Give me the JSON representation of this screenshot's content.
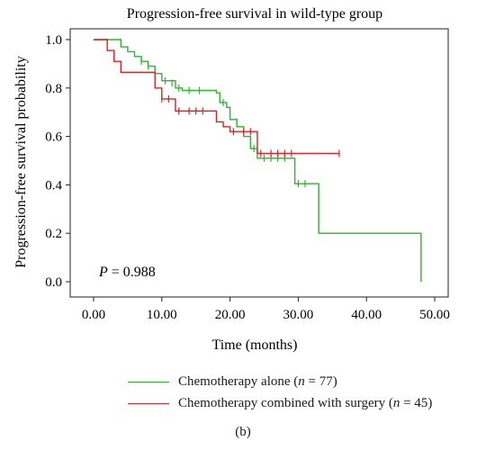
{
  "chart_data": {
    "type": "line",
    "step": true,
    "title": "Progression-free survival in wild-type group",
    "xlabel": "Time (months)",
    "ylabel": "Progression-free survival probability",
    "xlim": [
      0,
      50
    ],
    "ylim": [
      0,
      1.0
    ],
    "x_ticks": [
      "0.00",
      "10.00",
      "20.00",
      "30.00",
      "40.00",
      "50.00"
    ],
    "y_ticks": [
      "0.0",
      "0.2",
      "0.4",
      "0.6",
      "0.8",
      "1.0"
    ],
    "annotation": {
      "p_label": "P",
      "p_value": "= 0.988"
    },
    "grid": false,
    "legend_position": "bottom",
    "series": [
      {
        "name": "Chemotherapy alone",
        "n_label": "n",
        "n_value": "= 77",
        "color": "#2db52d",
        "steps": [
          [
            0,
            1.0
          ],
          [
            3,
            1.0
          ],
          [
            4,
            0.97
          ],
          [
            5,
            0.95
          ],
          [
            6,
            0.93
          ],
          [
            7,
            0.91
          ],
          [
            8,
            0.89
          ],
          [
            9,
            0.86
          ],
          [
            10,
            0.83
          ],
          [
            12,
            0.8
          ],
          [
            13,
            0.79
          ],
          [
            18,
            0.78
          ],
          [
            18.5,
            0.74
          ],
          [
            19.5,
            0.72
          ],
          [
            20,
            0.67
          ],
          [
            21,
            0.64
          ],
          [
            22,
            0.6
          ],
          [
            23,
            0.55
          ],
          [
            24,
            0.51
          ],
          [
            29,
            0.51
          ],
          [
            29.5,
            0.405
          ],
          [
            33,
            0.405
          ],
          [
            33,
            0.2
          ],
          [
            48,
            0.2
          ],
          [
            48,
            0.0
          ]
        ],
        "censored": [
          [
            7,
            0.91
          ],
          [
            8,
            0.89
          ],
          [
            10.5,
            0.83
          ],
          [
            11.5,
            0.82
          ],
          [
            12.5,
            0.8
          ],
          [
            14,
            0.79
          ],
          [
            15.5,
            0.79
          ],
          [
            19,
            0.74
          ],
          [
            21,
            0.66
          ],
          [
            23.5,
            0.55
          ],
          [
            25,
            0.51
          ],
          [
            26,
            0.51
          ],
          [
            27,
            0.51
          ],
          [
            28,
            0.51
          ],
          [
            30,
            0.405
          ],
          [
            31,
            0.405
          ]
        ]
      },
      {
        "name": "Chemotherapy combined with surgery",
        "n_label": "n",
        "n_value": "= 45",
        "color": "#e02020",
        "steps": [
          [
            0,
            1.0
          ],
          [
            2,
            1.0
          ],
          [
            2,
            0.955
          ],
          [
            3,
            0.91
          ],
          [
            4,
            0.865
          ],
          [
            9,
            0.865
          ],
          [
            9,
            0.8
          ],
          [
            10,
            0.755
          ],
          [
            12,
            0.705
          ],
          [
            17,
            0.705
          ],
          [
            18,
            0.66
          ],
          [
            19,
            0.64
          ],
          [
            20,
            0.62
          ],
          [
            23,
            0.62
          ],
          [
            24,
            0.575
          ],
          [
            24,
            0.53
          ],
          [
            36,
            0.53
          ]
        ],
        "censored": [
          [
            10,
            0.755
          ],
          [
            11,
            0.755
          ],
          [
            12.5,
            0.705
          ],
          [
            14,
            0.705
          ],
          [
            15,
            0.705
          ],
          [
            16,
            0.705
          ],
          [
            20.5,
            0.62
          ],
          [
            22,
            0.62
          ],
          [
            23,
            0.62
          ],
          [
            24.5,
            0.53
          ],
          [
            26,
            0.53
          ],
          [
            27,
            0.53
          ],
          [
            28,
            0.53
          ],
          [
            29,
            0.53
          ],
          [
            36,
            0.53
          ]
        ]
      }
    ]
  },
  "caption": "(b)"
}
